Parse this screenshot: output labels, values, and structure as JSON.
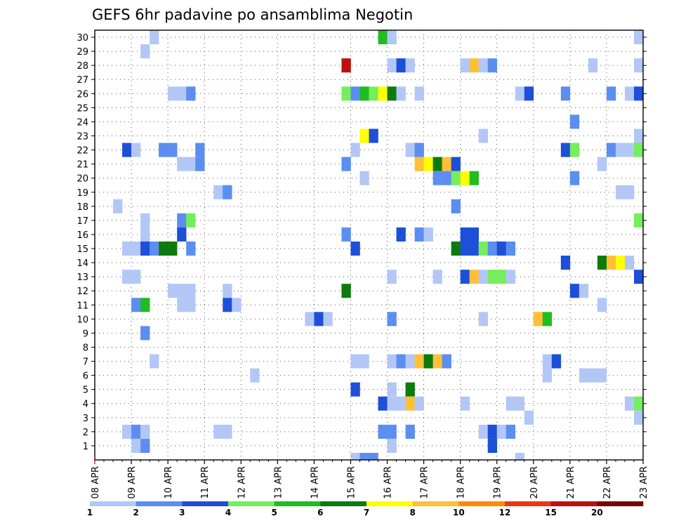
{
  "chart_data": {
    "type": "heatmap",
    "title": "GEFS 6hr padavine po ansamblima Negotin",
    "xlabel": "",
    "ylabel": "",
    "x_ticks": [
      "08 APR",
      "09 APR",
      "10 APR",
      "11 APR",
      "12 APR",
      "13 APR",
      "14 APR",
      "15 APR",
      "16 APR",
      "17 APR",
      "18 APR",
      "19 APR",
      "20 APR",
      "21 APR",
      "22 APR",
      "23 APR"
    ],
    "x_unit": "6-hour step (day = 4 steps, index 0 = 08 APR 00Z)",
    "xlim": [
      0,
      60
    ],
    "y_ticks": [
      1,
      2,
      3,
      4,
      5,
      6,
      7,
      8,
      9,
      10,
      11,
      12,
      13,
      14,
      15,
      16,
      17,
      18,
      19,
      20,
      21,
      22,
      23,
      24,
      25,
      26,
      27,
      28,
      29,
      30
    ],
    "ylim": [
      0,
      30
    ],
    "grid": true,
    "colorbar": {
      "placement": "bottom",
      "labels": [
        "1",
        "2",
        "3",
        "4",
        "5",
        "6",
        "7",
        "8",
        "10",
        "12",
        "15",
        "20"
      ],
      "colors": [
        "#b3c7f7",
        "#5c8ef0",
        "#1e4fd8",
        "#74ee5c",
        "#1fbd1f",
        "#0d7a0d",
        "#ffff00",
        "#ffbf38",
        "#ff8a00",
        "#e83818",
        "#bb1010",
        "#7a0000"
      ]
    },
    "cell_value_note": "each cell value = colour class index (0..11) of the legend above",
    "cells": [
      [
        6,
        30,
        0
      ],
      [
        31,
        30,
        4
      ],
      [
        32,
        30,
        0
      ],
      [
        59,
        30,
        0
      ],
      [
        5,
        29,
        0
      ],
      [
        27,
        28,
        10
      ],
      [
        32,
        28,
        0
      ],
      [
        33,
        28,
        2
      ],
      [
        34,
        28,
        0
      ],
      [
        40,
        28,
        0
      ],
      [
        41,
        28,
        7
      ],
      [
        42,
        28,
        0
      ],
      [
        43,
        28,
        1
      ],
      [
        54,
        28,
        0
      ],
      [
        59,
        28,
        0
      ],
      [
        8,
        26,
        0
      ],
      [
        9,
        26,
        0
      ],
      [
        10,
        26,
        1
      ],
      [
        27,
        26,
        3
      ],
      [
        28,
        26,
        1
      ],
      [
        29,
        26,
        4
      ],
      [
        30,
        26,
        3
      ],
      [
        31,
        26,
        6
      ],
      [
        32,
        26,
        5
      ],
      [
        33,
        26,
        0
      ],
      [
        35,
        26,
        0
      ],
      [
        46,
        26,
        0
      ],
      [
        47,
        26,
        2
      ],
      [
        51,
        26,
        1
      ],
      [
        56,
        26,
        1
      ],
      [
        58,
        26,
        0
      ],
      [
        59,
        26,
        2
      ],
      [
        52,
        24,
        1
      ],
      [
        29,
        23,
        6
      ],
      [
        30,
        23,
        2
      ],
      [
        42,
        23,
        0
      ],
      [
        59,
        23,
        0
      ],
      [
        3,
        22,
        2
      ],
      [
        4,
        22,
        0
      ],
      [
        7,
        22,
        1
      ],
      [
        8,
        22,
        1
      ],
      [
        11,
        22,
        1
      ],
      [
        28,
        22,
        0
      ],
      [
        34,
        22,
        0
      ],
      [
        35,
        22,
        1
      ],
      [
        51,
        22,
        2
      ],
      [
        52,
        22,
        3
      ],
      [
        56,
        22,
        1
      ],
      [
        57,
        22,
        0
      ],
      [
        58,
        22,
        0
      ],
      [
        59,
        22,
        3
      ],
      [
        9,
        21,
        0
      ],
      [
        10,
        21,
        0
      ],
      [
        11,
        21,
        1
      ],
      [
        27,
        21,
        1
      ],
      [
        35,
        21,
        7
      ],
      [
        36,
        21,
        6
      ],
      [
        37,
        21,
        5
      ],
      [
        38,
        21,
        7
      ],
      [
        39,
        21,
        2
      ],
      [
        55,
        21,
        0
      ],
      [
        29,
        20,
        0
      ],
      [
        37,
        20,
        1
      ],
      [
        38,
        20,
        1
      ],
      [
        39,
        20,
        3
      ],
      [
        40,
        20,
        6
      ],
      [
        41,
        20,
        4
      ],
      [
        52,
        20,
        1
      ],
      [
        13,
        19,
        0
      ],
      [
        14,
        19,
        1
      ],
      [
        57,
        19,
        0
      ],
      [
        58,
        19,
        0
      ],
      [
        2,
        18,
        0
      ],
      [
        39,
        18,
        1
      ],
      [
        5,
        17,
        0
      ],
      [
        9,
        17,
        1
      ],
      [
        10,
        17,
        3
      ],
      [
        59,
        17,
        3
      ],
      [
        5,
        16,
        0
      ],
      [
        9,
        16,
        2
      ],
      [
        27,
        16,
        1
      ],
      [
        33,
        16,
        2
      ],
      [
        35,
        16,
        1
      ],
      [
        36,
        16,
        0
      ],
      [
        40,
        16,
        2
      ],
      [
        41,
        16,
        2
      ],
      [
        3,
        15,
        0
      ],
      [
        4,
        15,
        0
      ],
      [
        5,
        15,
        2
      ],
      [
        6,
        15,
        1
      ],
      [
        7,
        15,
        5
      ],
      [
        8,
        15,
        5
      ],
      [
        10,
        15,
        1
      ],
      [
        28,
        15,
        2
      ],
      [
        39,
        15,
        5
      ],
      [
        40,
        15,
        2
      ],
      [
        41,
        15,
        2
      ],
      [
        42,
        15,
        3
      ],
      [
        43,
        15,
        1
      ],
      [
        44,
        15,
        2
      ],
      [
        45,
        15,
        1
      ],
      [
        51,
        14,
        2
      ],
      [
        55,
        14,
        5
      ],
      [
        56,
        14,
        7
      ],
      [
        57,
        14,
        6
      ],
      [
        58,
        14,
        0
      ],
      [
        3,
        13,
        0
      ],
      [
        4,
        13,
        0
      ],
      [
        32,
        13,
        0
      ],
      [
        37,
        13,
        0
      ],
      [
        40,
        13,
        2
      ],
      [
        41,
        13,
        7
      ],
      [
        42,
        13,
        0
      ],
      [
        43,
        13,
        3
      ],
      [
        44,
        13,
        3
      ],
      [
        45,
        13,
        0
      ],
      [
        59,
        13,
        2
      ],
      [
        8,
        12,
        0
      ],
      [
        9,
        12,
        0
      ],
      [
        10,
        12,
        0
      ],
      [
        14,
        12,
        0
      ],
      [
        27,
        12,
        5
      ],
      [
        52,
        12,
        2
      ],
      [
        53,
        12,
        0
      ],
      [
        4,
        11,
        1
      ],
      [
        5,
        11,
        4
      ],
      [
        9,
        11,
        0
      ],
      [
        10,
        11,
        0
      ],
      [
        14,
        11,
        2
      ],
      [
        15,
        11,
        0
      ],
      [
        55,
        11,
        0
      ],
      [
        23,
        10,
        0
      ],
      [
        24,
        10,
        2
      ],
      [
        25,
        10,
        0
      ],
      [
        32,
        10,
        1
      ],
      [
        42,
        10,
        0
      ],
      [
        48,
        10,
        7
      ],
      [
        49,
        10,
        4
      ],
      [
        5,
        9,
        1
      ],
      [
        6,
        7,
        0
      ],
      [
        28,
        7,
        0
      ],
      [
        29,
        7,
        0
      ],
      [
        32,
        7,
        0
      ],
      [
        33,
        7,
        1
      ],
      [
        34,
        7,
        0
      ],
      [
        35,
        7,
        7
      ],
      [
        36,
        7,
        5
      ],
      [
        37,
        7,
        7
      ],
      [
        38,
        7,
        1
      ],
      [
        49,
        7,
        0
      ],
      [
        50,
        7,
        2
      ],
      [
        17,
        6,
        0
      ],
      [
        49,
        6,
        0
      ],
      [
        53,
        6,
        0
      ],
      [
        54,
        6,
        0
      ],
      [
        55,
        6,
        0
      ],
      [
        28,
        5,
        2
      ],
      [
        32,
        5,
        0
      ],
      [
        34,
        5,
        5
      ],
      [
        31,
        4,
        2
      ],
      [
        32,
        4,
        0
      ],
      [
        33,
        4,
        0
      ],
      [
        34,
        4,
        7
      ],
      [
        35,
        4,
        0
      ],
      [
        40,
        4,
        0
      ],
      [
        45,
        4,
        0
      ],
      [
        46,
        4,
        0
      ],
      [
        58,
        4,
        0
      ],
      [
        59,
        4,
        3
      ],
      [
        47,
        3,
        0
      ],
      [
        59,
        3,
        0
      ],
      [
        3,
        2,
        0
      ],
      [
        4,
        2,
        1
      ],
      [
        5,
        2,
        0
      ],
      [
        13,
        2,
        0
      ],
      [
        14,
        2,
        0
      ],
      [
        31,
        2,
        1
      ],
      [
        32,
        2,
        1
      ],
      [
        34,
        2,
        1
      ],
      [
        42,
        2,
        0
      ],
      [
        43,
        2,
        2
      ],
      [
        44,
        2,
        0
      ],
      [
        45,
        2,
        1
      ],
      [
        4,
        1,
        0
      ],
      [
        5,
        1,
        1
      ],
      [
        32,
        1,
        0
      ],
      [
        43,
        1,
        2
      ],
      [
        28,
        0,
        0
      ],
      [
        29,
        0,
        1
      ],
      [
        30,
        0,
        1
      ],
      [
        46,
        0,
        0
      ]
    ]
  }
}
